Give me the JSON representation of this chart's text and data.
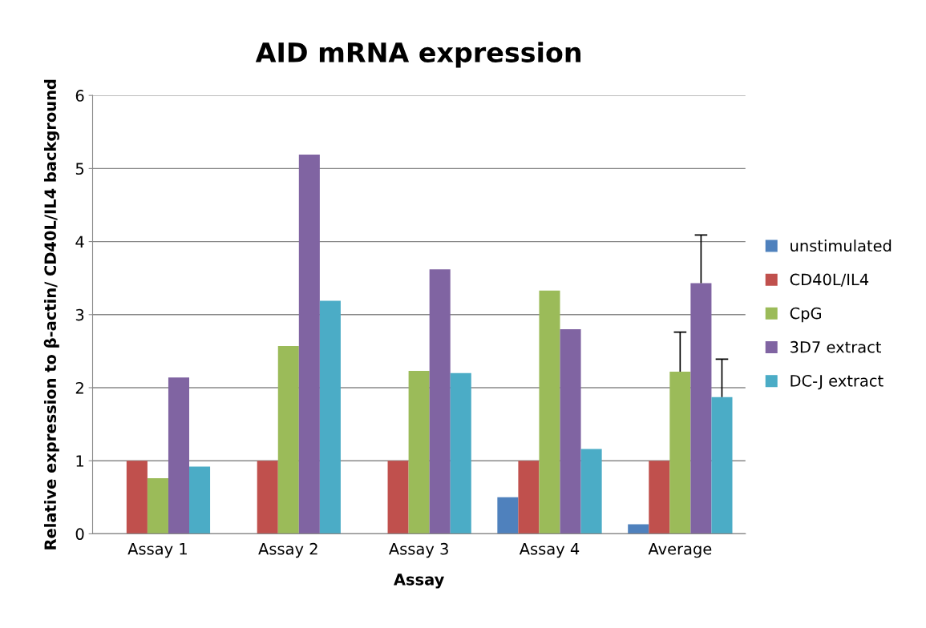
{
  "chart_data": {
    "type": "bar",
    "title": "AID mRNA expression",
    "xlabel": "Assay",
    "ylabel": "Relative expression to β-actin/ CD40L/IL4 background",
    "categories": [
      "Assay 1",
      "Assay 2",
      "Assay 3",
      "Assay 4",
      "Average"
    ],
    "series": [
      {
        "name": "unstimulated",
        "color": "#4f81bd",
        "values": [
          0,
          0,
          0,
          0.5,
          0.13
        ]
      },
      {
        "name": "CD40L/IL4",
        "color": "#c0504d",
        "values": [
          1,
          1,
          1,
          1,
          1
        ]
      },
      {
        "name": "CpG",
        "color": "#9bbb59",
        "values": [
          0.76,
          2.57,
          2.23,
          3.33,
          2.22
        ],
        "errors": [
          null,
          null,
          null,
          null,
          [
            2.22,
            2.76
          ]
        ]
      },
      {
        "name": "3D7 extract",
        "color": "#8064a2",
        "values": [
          2.14,
          5.19,
          3.62,
          2.8,
          3.43
        ],
        "errors": [
          null,
          null,
          null,
          null,
          [
            3.43,
            4.09
          ]
        ]
      },
      {
        "name": "DC-J extract",
        "color": "#4bacc6",
        "values": [
          0.92,
          3.19,
          2.2,
          1.16,
          1.87
        ],
        "errors": [
          null,
          null,
          null,
          null,
          [
            1.87,
            2.39
          ]
        ]
      }
    ],
    "ylim": [
      0,
      6
    ],
    "yticks": [
      0,
      1,
      2,
      3,
      4,
      5,
      6
    ],
    "grid": "y",
    "legend": "right"
  }
}
